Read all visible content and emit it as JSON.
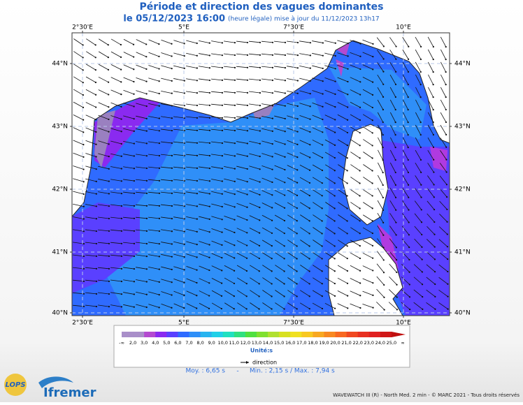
{
  "header": {
    "title": "Période et direction des vagues dominantes",
    "date": "le 05/12/2023 16:00",
    "subtitle": "(heure légale) mise à jour du 11/12/2023 13h17"
  },
  "map": {
    "lon_labels": [
      "2°30'E",
      "5°E",
      "7°30'E",
      "10°E"
    ],
    "lat_labels": [
      "44°N",
      "43°N",
      "42°N",
      "41°N",
      "40°N"
    ]
  },
  "legend": {
    "colorbar_labels": [
      "-∞",
      "2,0",
      "3,0",
      "4,0",
      "5,0",
      "6,0",
      "7,0",
      "8,0",
      "9,0",
      "10,0",
      "11,0",
      "12,0",
      "13,0",
      "14,0",
      "15,0",
      "16,0",
      "17,0",
      "18,0",
      "19,0",
      "20,0",
      "21,0",
      "22,0",
      "23,0",
      "24,0",
      "25,0",
      "∞"
    ],
    "unit": "Unité:s",
    "direction": "direction"
  },
  "stats": {
    "mean": "Moy. : 6,65 s",
    "separator": "-",
    "minmax": "Min. : 2,15 s / Max. : 7,94 s"
  },
  "footer": {
    "logo_lops": "LOPS",
    "logo_ifremer": "Ifremer",
    "credits": "WAVEWATCH III (R) - North Med. 2 min - © MARC 2021 - Tous droits réservés"
  }
}
